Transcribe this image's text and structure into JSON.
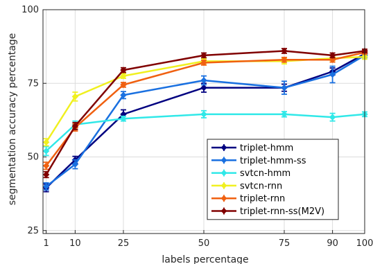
{
  "chart_data": {
    "type": "line",
    "xlabel": "labels percentage",
    "ylabel": "segmentation accuracy percentage",
    "x": [
      1,
      10,
      25,
      50,
      75,
      90,
      100
    ],
    "x_tick_labels": [
      "1",
      "10",
      "25",
      "50",
      "75",
      "90",
      "100"
    ],
    "y_ticks": [
      25,
      50,
      75,
      100
    ],
    "xlim": [
      0,
      100
    ],
    "ylim": [
      24,
      100
    ],
    "grid": true,
    "legend_position": "bottom-right",
    "series": [
      {
        "name": "triplet-hmm",
        "color": "#000080",
        "values": [
          39.5,
          49,
          64.5,
          73.5,
          73.5,
          79,
          85
        ],
        "errors": [
          1.3,
          1.2,
          1.5,
          1.5,
          1.2,
          1.2,
          0.8
        ]
      },
      {
        "name": "triplet-hmm-ss",
        "color": "#1a70e0",
        "values": [
          40,
          47.5,
          71,
          76,
          73.5,
          78,
          84.5
        ],
        "errors": [
          1.2,
          1.5,
          1.2,
          1.5,
          2.2,
          2.8,
          0.8
        ]
      },
      {
        "name": "svtcn-hmm",
        "color": "#30e8e8",
        "values": [
          52,
          61,
          63,
          64.5,
          64.5,
          63.5,
          64.5
        ],
        "errors": [
          1.5,
          1.2,
          0.8,
          1.2,
          0.9,
          1.3,
          0.8
        ]
      },
      {
        "name": "svtcn-rnn",
        "color": "#f0f020",
        "values": [
          55,
          70.5,
          77.5,
          82.5,
          82.5,
          83.5,
          84
        ],
        "errors": [
          1.2,
          1.5,
          0.8,
          0.8,
          0.9,
          0.8,
          0.8
        ]
      },
      {
        "name": "triplet-rnn",
        "color": "#f06010",
        "values": [
          47,
          60,
          74.5,
          82,
          83,
          83,
          85.5
        ],
        "errors": [
          1.2,
          1.2,
          0.8,
          0.8,
          0.8,
          0.8,
          0.6
        ]
      },
      {
        "name": "triplet-rnn-ss(M2V)",
        "color": "#800000",
        "values": [
          44,
          60.5,
          79.5,
          84.5,
          86,
          84.5,
          86
        ],
        "errors": [
          1.0,
          1.2,
          0.8,
          0.8,
          0.8,
          0.8,
          0.6
        ]
      }
    ]
  }
}
